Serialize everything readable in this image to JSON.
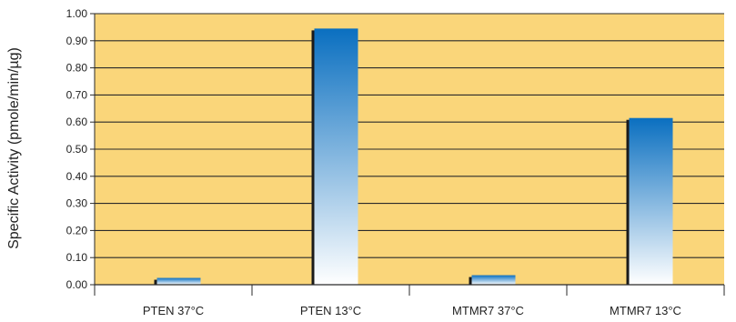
{
  "chart_data": {
    "type": "bar",
    "ylabel": "Specific Activity (pmole/min/µg)",
    "categories": [
      "PTEN 37°C",
      "PTEN 13°C",
      "MTMR7 37°C",
      "MTMR7 13°C"
    ],
    "values": [
      0.025,
      0.945,
      0.035,
      0.615
    ],
    "ylim": [
      0,
      1.0
    ],
    "yticks": [
      "0.00",
      "0.10",
      "0.20",
      "0.30",
      "0.40",
      "0.50",
      "0.60",
      "0.70",
      "0.80",
      "0.90",
      "1.00"
    ],
    "grid": true,
    "legend": "none",
    "colors": {
      "plot_background": "#FAD67A",
      "bar_top": "#0A6FC0",
      "bar_bottom": "#FFFFFF",
      "bar_shadow": "#1A1A1A",
      "grid": "#2A2A2A"
    }
  }
}
